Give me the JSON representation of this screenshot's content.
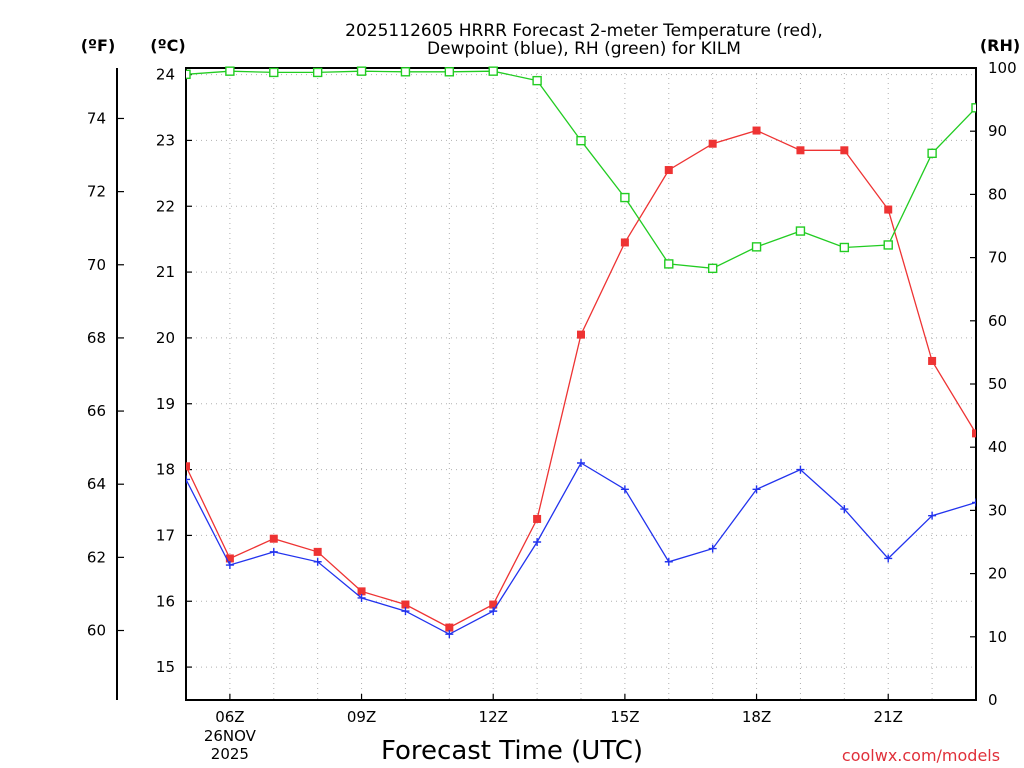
{
  "title_line1": "2025112605 HRRR Forecast 2-meter Temperature (red),",
  "title_line2": "Dewpoint (blue), RH (green) for KILM",
  "credit": "coolwx.com/models",
  "chart_data": {
    "type": "line",
    "title": "2025112605 HRRR Forecast 2-meter Temperature (red), Dewpoint (blue), RH (green) for KILM",
    "xlabel": "Forecast Time (UTC)",
    "x_hours": [
      5,
      6,
      7,
      8,
      9,
      10,
      11,
      12,
      13,
      14,
      15,
      16,
      17,
      18,
      19,
      20,
      21,
      22,
      23
    ],
    "xlim": [
      5,
      23
    ],
    "x_ticks": [
      {
        "hour": 6,
        "label": "06Z",
        "sub": [
          "26NOV",
          "2025"
        ]
      },
      {
        "hour": 9,
        "label": "09Z"
      },
      {
        "hour": 12,
        "label": "12Z"
      },
      {
        "hour": 15,
        "label": "15Z"
      },
      {
        "hour": 18,
        "label": "18Z"
      },
      {
        "hour": 21,
        "label": "21Z"
      }
    ],
    "axes": {
      "left_f": {
        "unit_label": "(ºF)",
        "ticks": [
          60,
          62,
          64,
          66,
          68,
          70,
          72,
          74
        ]
      },
      "left_c": {
        "unit_label": "(ºC)",
        "ylim": [
          14.5,
          24.1
        ],
        "ticks": [
          15,
          16,
          17,
          18,
          19,
          20,
          21,
          22,
          23,
          24
        ]
      },
      "right_rh": {
        "unit_label": "(RH)",
        "ylim": [
          0,
          100
        ],
        "ticks": [
          0,
          10,
          20,
          30,
          40,
          50,
          60,
          70,
          80,
          90,
          100
        ]
      }
    },
    "series": [
      {
        "name": "Temperature",
        "axis": "celsius",
        "color": "#ee3333",
        "marker": "filled-square",
        "values": [
          18.05,
          16.65,
          16.95,
          16.75,
          16.15,
          15.95,
          15.6,
          15.95,
          17.25,
          20.05,
          21.45,
          22.55,
          22.95,
          23.15,
          22.85,
          22.85,
          21.95,
          19.65,
          18.55
        ]
      },
      {
        "name": "Dewpoint",
        "axis": "celsius",
        "color": "#2233ee",
        "marker": "plus",
        "values": [
          17.85,
          16.55,
          16.75,
          16.6,
          16.05,
          15.85,
          15.5,
          15.85,
          16.9,
          18.1,
          17.7,
          16.6,
          16.8,
          17.7,
          18.0,
          17.4,
          16.65,
          17.3,
          17.5
        ]
      },
      {
        "name": "RH",
        "axis": "rh",
        "color": "#22cc22",
        "marker": "open-square",
        "values": [
          99,
          99.5,
          99.3,
          99.3,
          99.5,
          99.4,
          99.4,
          99.5,
          98,
          88.5,
          79.5,
          69,
          68.3,
          71.7,
          74.2,
          71.6,
          72,
          86.5,
          93.7
        ]
      }
    ]
  }
}
